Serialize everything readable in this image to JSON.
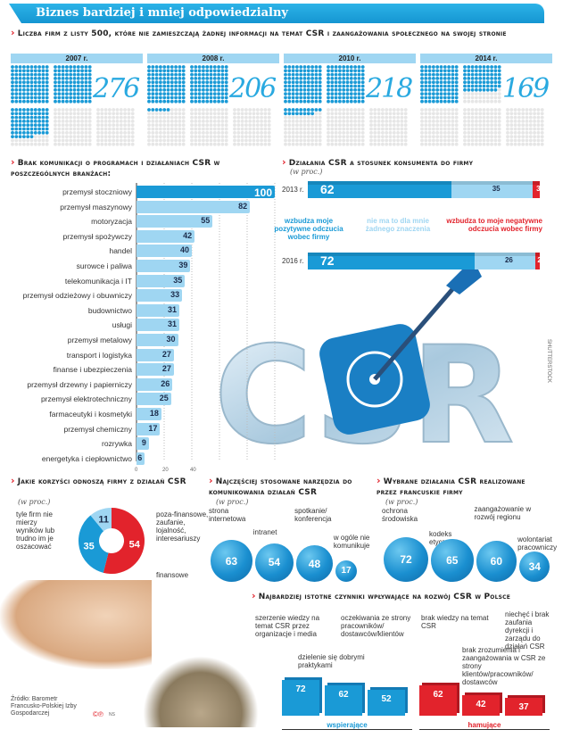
{
  "title": "Biznes bardziej i mniej odpowiedzialny",
  "colors": {
    "accent": "#1a9ad6",
    "light": "#9fd6f2",
    "negative": "#e2232c",
    "empty": "#e6e6e6"
  },
  "waffle": {
    "title": "Liczba firm z listy 500, które nie zamieszczają żadnej informacji na temat CSR i zaangażowania społecznego na swojej stronie",
    "total": 500,
    "years": [
      {
        "label": "2007 r.",
        "value": 276,
        "value_label": "276"
      },
      {
        "label": "2008 r.",
        "value": 206,
        "value_label": "206"
      },
      {
        "label": "2010 r.",
        "value": 218,
        "value_label": "218"
      },
      {
        "label": "2014 r.",
        "value": 169,
        "value_label": "169"
      }
    ]
  },
  "chart_data": [
    {
      "type": "bar",
      "orientation": "horizontal",
      "title": "Brak komunikacji o programach i działaniach CSR w poszczególnych branżach:",
      "categories": [
        "przemysł stoczniowy",
        "przemysł maszynowy",
        "motoryzacja",
        "przemysł spożywczy",
        "handel",
        "surowce i paliwa",
        "telekomunikacja i IT",
        "przemysł odzieżowy i obuwniczy",
        "budownictwo",
        "usługi",
        "przemysł metalowy",
        "transport i logistyka",
        "finanse i ubezpieczenia",
        "przemysł drzewny i papierniczy",
        "przemysł elektrotechniczny",
        "farmaceutyki i kosmetyki",
        "przemysł chemiczny",
        "rozrywka",
        "energetyka i ciepłownictwo"
      ],
      "values": [
        100,
        82,
        55,
        42,
        40,
        39,
        35,
        33,
        31,
        31,
        30,
        27,
        27,
        26,
        25,
        18,
        17,
        9,
        6
      ],
      "xticks": [
        "0",
        "20",
        "40"
      ],
      "xlim": [
        0,
        100
      ],
      "grid": true
    },
    {
      "type": "bar",
      "orientation": "horizontal",
      "stacked": true,
      "title": "Działania CSR a stosunek konsumenta do firmy",
      "unit": "(w proc.)",
      "categories": [
        "2013 r.",
        "2016 r."
      ],
      "series": [
        {
          "name": "wzbudza moje pozytywne odczucia wobec firmy",
          "values": [
            62,
            72
          ]
        },
        {
          "name": "nie ma to dla mnie żadnego znaczenia",
          "values": [
            35,
            26
          ]
        },
        {
          "name": "wzbudza to moje negatywne odczucia wobec firmy",
          "values": [
            3,
            2
          ]
        }
      ]
    },
    {
      "type": "pie",
      "donut": true,
      "title": "Jakie korzyści odnoszą firmy z działań CSR",
      "unit": "(w proc.)",
      "slices": [
        {
          "label": "tyle firm nie mierzy wyników lub trudno im je oszacować",
          "value": 54
        },
        {
          "label": "poza-finansowe, zaufanie, lojalność, interesariuszy",
          "value": 35
        },
        {
          "label": "finansowe",
          "value": 11
        }
      ]
    },
    {
      "type": "bubble",
      "title": "Najczęściej stosowane narzędzia do komunikowania działań CSR",
      "unit": "(w proc.)",
      "categories": [
        "strona internetowa",
        "intranet",
        "spotkanie/ konferencja",
        "w ogóle nie komunikuje"
      ],
      "values": [
        63,
        54,
        48,
        17
      ]
    },
    {
      "type": "bubble",
      "title": "Wybrane działania CSR realizowane przez francuskie firmy",
      "unit": "(w proc.)",
      "categories": [
        "ochrona środowiska",
        "kodeks etyczny",
        "zaangażowanie w rozwój regionu",
        "wolontariat pracowniczy"
      ],
      "values": [
        72,
        65,
        60,
        34
      ]
    },
    {
      "type": "bar",
      "title": "Najbardziej istotne czynniki wpływające na rozwój CSR w Polsce",
      "groups": [
        {
          "name": "wspierające",
          "categories": [
            "szerzenie wiedzy na temat CSR przez organizacje i media",
            "dzielenie się dobrymi praktykami",
            "oczekiwania ze strony pracowników/ dostawców/klientów"
          ],
          "values": [
            72,
            62,
            52
          ]
        },
        {
          "name": "hamujące",
          "categories": [
            "brak wiedzy na temat CSR",
            "brak zrozumienia i zaangażowania w CSR ze strony klientów/pracowników/ dostawców",
            "niechęć i brak zaufania dyrekcji i zarządu do działań CSR"
          ],
          "values": [
            62,
            42,
            37
          ]
        }
      ]
    }
  ],
  "image_credit": "SHUTTERSTOCK",
  "source": "Źródło: Barometr Francusko-Polskiej Izby Gospodarczej",
  "byline": "NS"
}
